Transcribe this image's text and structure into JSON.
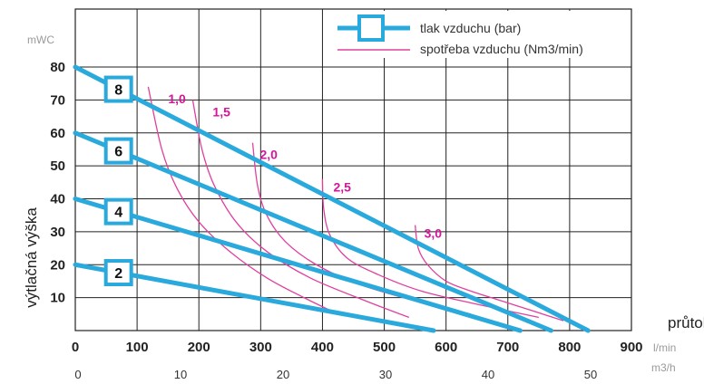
{
  "chart_data": {
    "type": "line",
    "title": "",
    "ylabel": "výtlačná výška",
    "yunit": "mWC",
    "xlabel": "průtok",
    "xunit": "l/min",
    "x2unit": "m3/h",
    "xlim": [
      0,
      900
    ],
    "ylim": [
      0,
      80
    ],
    "x2lim": [
      0,
      54
    ],
    "yticks": [
      10,
      20,
      30,
      40,
      50,
      60,
      70,
      80
    ],
    "xticks": [
      0,
      100,
      200,
      300,
      400,
      500,
      600,
      700,
      800,
      900
    ],
    "x2ticks": [
      0,
      10,
      20,
      30,
      40,
      50
    ],
    "grid": true,
    "legend": {
      "position": "top-right",
      "pressure_label": "tlak vzduchu (bar)",
      "consumption_label": "spotřeba vzduchu (Nm3/min)"
    },
    "pressure_series": [
      {
        "name": "2",
        "x": [
          0,
          580
        ],
        "y": [
          20,
          0
        ]
      },
      {
        "name": "4",
        "x": [
          0,
          720
        ],
        "y": [
          40,
          0
        ]
      },
      {
        "name": "6",
        "x": [
          0,
          770
        ],
        "y": [
          60,
          0
        ]
      },
      {
        "name": "8",
        "x": [
          0,
          830
        ],
        "y": [
          80,
          0
        ]
      }
    ],
    "consumption_series": [
      {
        "name": "1,0",
        "x": [
          118,
          140,
          165,
          200,
          250,
          310,
          370,
          425
        ],
        "y": [
          74,
          55,
          43,
          33,
          24,
          16,
          10,
          5
        ]
      },
      {
        "name": "1,5",
        "x": [
          190,
          205,
          225,
          260,
          310,
          380,
          470,
          540
        ],
        "y": [
          70,
          55,
          44,
          33,
          24,
          16,
          9,
          4
        ]
      },
      {
        "name": "2,0",
        "x": [
          287,
          295,
          310,
          340,
          390,
          460,
          550,
          640
        ],
        "y": [
          57,
          44,
          35,
          27,
          20,
          14,
          9,
          5
        ]
      },
      {
        "name": "2,5",
        "x": [
          400,
          402,
          412,
          440,
          490,
          560,
          650,
          750
        ],
        "y": [
          46,
          37,
          29,
          22,
          17,
          12,
          8,
          4
        ]
      },
      {
        "name": "3,0",
        "x": [
          550,
          555,
          570,
          600,
          640,
          690,
          740,
          790
        ],
        "y": [
          32,
          25,
          20,
          15,
          12,
          9,
          6,
          3
        ]
      }
    ]
  },
  "colors": {
    "pressure": "#2aa9dc",
    "consumption": "#e0409e",
    "consumption_label": "#d4169a",
    "grid": "#222222"
  },
  "legend_icon": "square-marker-on-line"
}
